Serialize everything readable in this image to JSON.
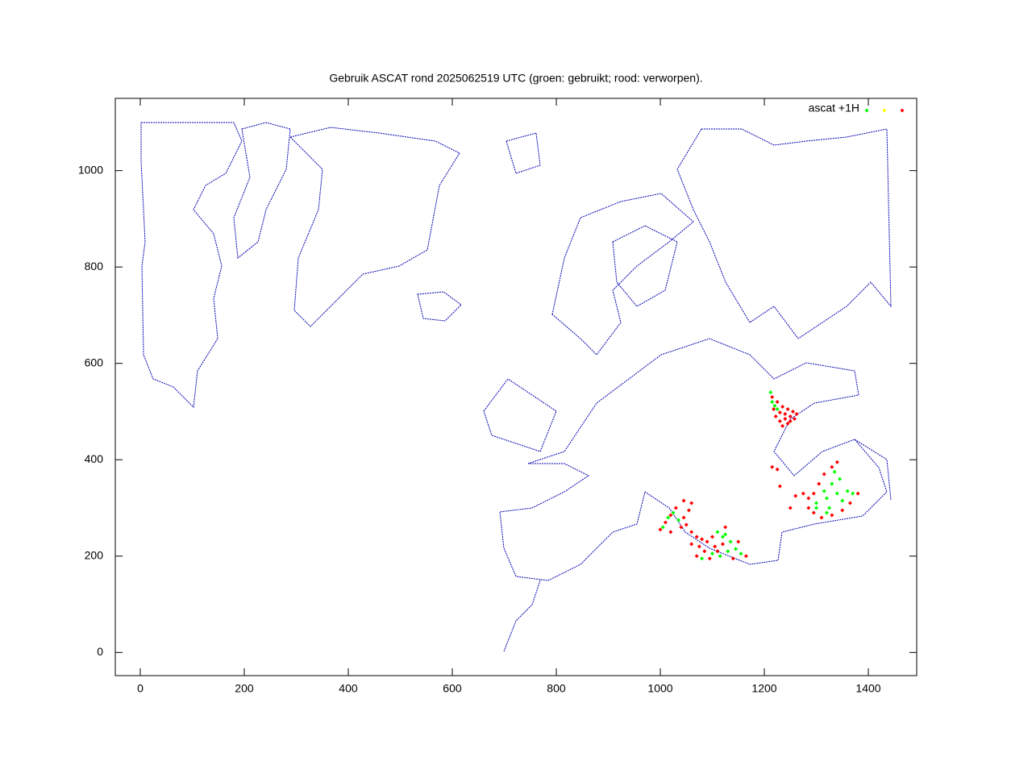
{
  "chart_data": {
    "type": "scatter",
    "title": "Gebruik ASCAT rond 2025062519 UTC (groen: gebruikt; rood: verworpen).",
    "xlim": [
      -48,
      1493
    ],
    "ylim": [
      -48,
      1150
    ],
    "xticks": [
      0,
      200,
      400,
      600,
      800,
      1000,
      1200,
      1400
    ],
    "yticks": [
      0,
      200,
      400,
      600,
      800,
      1000
    ],
    "legend": "top-right",
    "series": [
      {
        "name": "ascat +1H",
        "color": "#00ff00",
        "x": [
          1212,
          1215,
          1220,
          1225,
          1300,
          1320,
          1340,
          1360,
          1330,
          1345,
          1335,
          1315,
          1300,
          1325,
          1350,
          1370,
          1320,
          1005,
          1015,
          1025,
          1035,
          1110,
          1120,
          1135,
          1145,
          1155,
          1130,
          1100,
          1080,
          1115,
          1125
        ],
        "values": [
          540,
          520,
          512,
          505,
          310,
          320,
          330,
          335,
          350,
          360,
          375,
          335,
          300,
          300,
          315,
          330,
          290,
          260,
          280,
          290,
          275,
          250,
          240,
          230,
          215,
          205,
          210,
          205,
          195,
          200,
          245
        ]
      },
      {
        "color": "#ffff00",
        "x": [],
        "values": []
      },
      {
        "color": "#ff0000",
        "x": [
          1215,
          1225,
          1235,
          1245,
          1255,
          1262,
          1250,
          1240,
          1230,
          1222,
          1218,
          1230,
          1240,
          1250,
          1235,
          1245,
          1258,
          1285,
          1295,
          1310,
          1330,
          1350,
          1365,
          1380,
          1340,
          1330,
          1315,
          1305,
          1295,
          1285,
          1250,
          1260,
          1230,
          1215,
          1225,
          1275,
          1000,
          1010,
          1020,
          1030,
          1045,
          1060,
          1055,
          1045,
          1050,
          1060,
          1070,
          1080,
          1090,
          1100,
          1075,
          1085,
          1070,
          1095,
          1110,
          1120,
          1125,
          1150,
          1165,
          1140,
          1060,
          1105,
          1040,
          1020
        ],
        "values": [
          530,
          520,
          510,
          505,
          500,
          495,
          490,
          485,
          480,
          490,
          505,
          498,
          495,
          480,
          470,
          475,
          485,
          300,
          290,
          280,
          285,
          295,
          310,
          330,
          395,
          385,
          370,
          350,
          330,
          320,
          300,
          325,
          345,
          385,
          380,
          330,
          255,
          270,
          285,
          300,
          315,
          310,
          295,
          280,
          265,
          250,
          240,
          235,
          230,
          240,
          220,
          210,
          200,
          195,
          210,
          225,
          260,
          230,
          200,
          195,
          225,
          220,
          260,
          250
        ]
      }
    ]
  }
}
